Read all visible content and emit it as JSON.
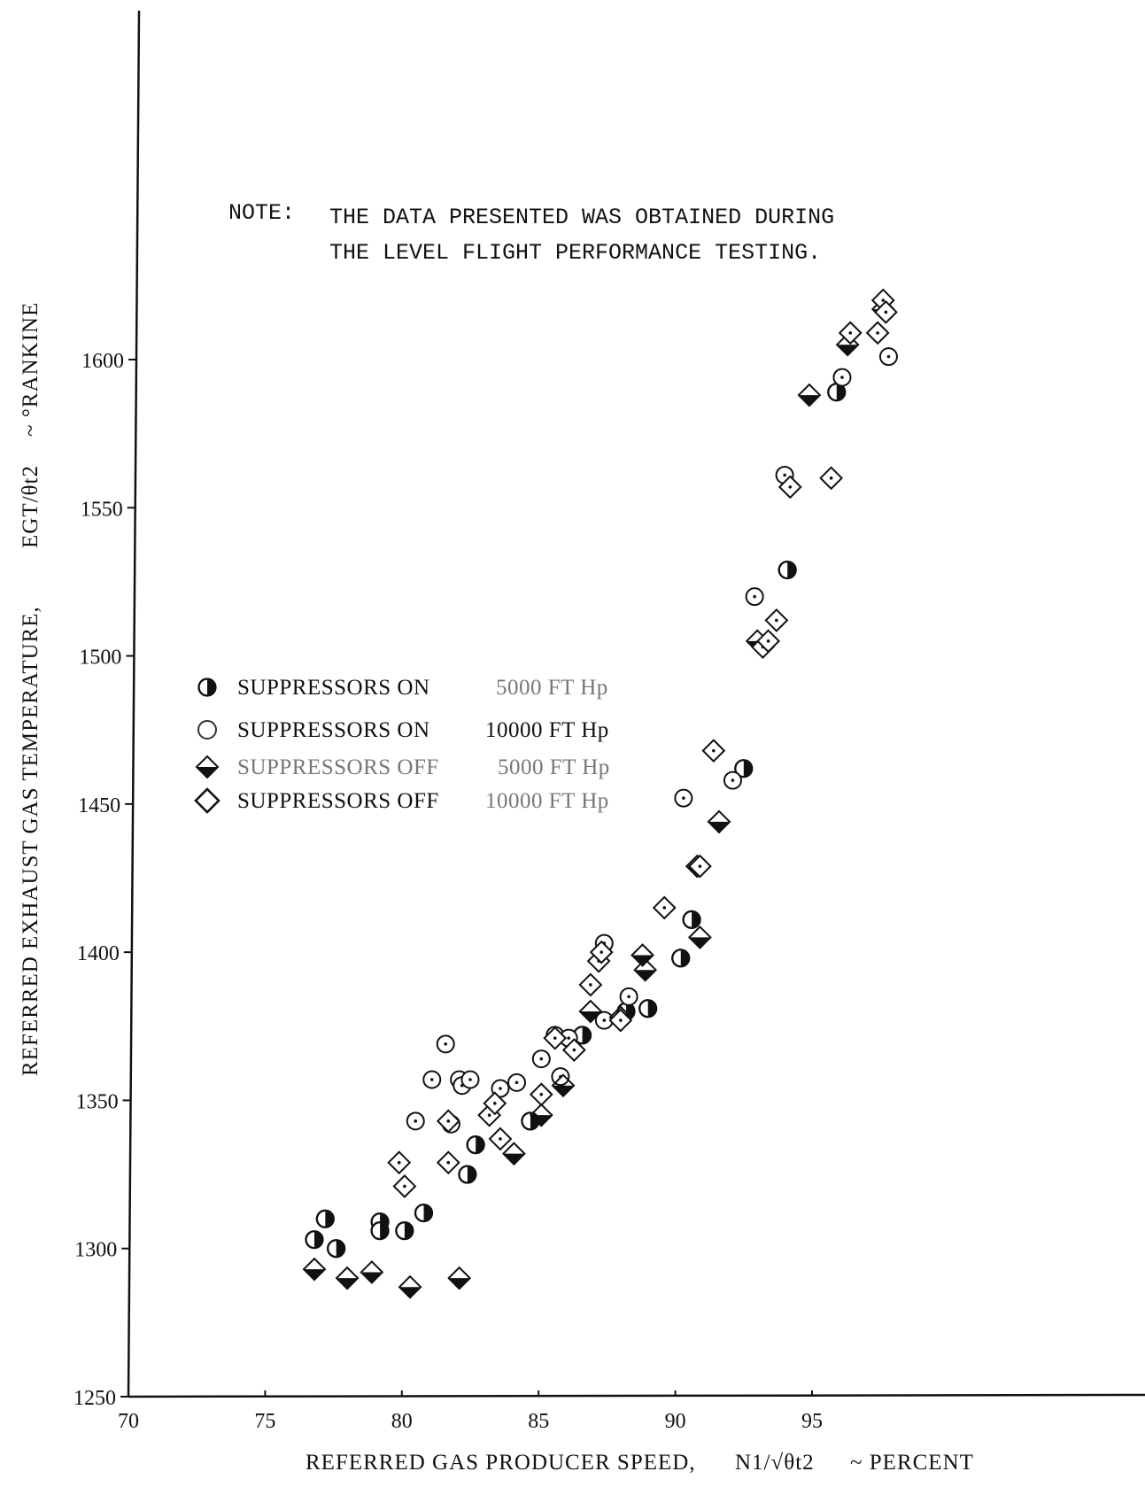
{
  "chart_data": {
    "type": "scatter",
    "note": {
      "label": "NOTE:",
      "lines": [
        "THE DATA PRESENTED WAS OBTAINED DURING",
        "THE LEVEL FLIGHT PERFORMANCE TESTING."
      ]
    },
    "xaxis": {
      "label_main": "REFERRED GAS PRODUCER SPEED,",
      "label_formula": "N1/√θt2",
      "label_unit": "~ PERCENT",
      "ticks": [
        70,
        75,
        80,
        85,
        90,
        95
      ],
      "range": [
        70,
        100
      ]
    },
    "yaxis": {
      "label_main": "REFERRED EXHAUST GAS TEMPERATURE,",
      "label_formula": "EGT/θt2",
      "label_unit": "~ °RANKINE",
      "ticks": [
        1250,
        1300,
        1350,
        1400,
        1450,
        1500,
        1550,
        1600
      ],
      "range": [
        1250,
        1640
      ]
    },
    "legend_placement": "center-left",
    "series": [
      {
        "name": "SUPPRESSORS ON",
        "altitude": "5000 FT Hp",
        "marker": "half-filled-circle",
        "points": [
          [
            76.8,
            1303
          ],
          [
            77.2,
            1310
          ],
          [
            77.6,
            1300
          ],
          [
            79.2,
            1309
          ],
          [
            79.2,
            1306
          ],
          [
            80.1,
            1306
          ],
          [
            80.8,
            1312
          ],
          [
            82.4,
            1325
          ],
          [
            82.7,
            1335
          ],
          [
            84.7,
            1343
          ],
          [
            86.6,
            1372
          ],
          [
            88.2,
            1380
          ],
          [
            89.0,
            1381
          ],
          [
            90.2,
            1398
          ],
          [
            90.6,
            1411
          ],
          [
            92.5,
            1462
          ],
          [
            94.1,
            1529
          ],
          [
            95.9,
            1589
          ]
        ]
      },
      {
        "name": "SUPPRESSORS ON",
        "altitude": "10000 FT Hp",
        "marker": "dotted-circle",
        "points": [
          [
            80.5,
            1343
          ],
          [
            81.1,
            1357
          ],
          [
            81.6,
            1369
          ],
          [
            81.8,
            1342
          ],
          [
            82.1,
            1357
          ],
          [
            82.2,
            1355
          ],
          [
            82.5,
            1357
          ],
          [
            83.6,
            1354
          ],
          [
            84.2,
            1356
          ],
          [
            85.1,
            1364
          ],
          [
            85.6,
            1372
          ],
          [
            85.8,
            1358
          ],
          [
            86.1,
            1371
          ],
          [
            87.4,
            1403
          ],
          [
            87.4,
            1377
          ],
          [
            88.3,
            1385
          ],
          [
            90.3,
            1452
          ],
          [
            92.1,
            1458
          ],
          [
            92.9,
            1520
          ],
          [
            94.0,
            1561
          ],
          [
            96.1,
            1594
          ],
          [
            97.8,
            1601
          ]
        ]
      },
      {
        "name": "SUPPRESSORS OFF",
        "altitude": "5000 FT Hp",
        "marker": "half-filled-diamond",
        "points": [
          [
            76.8,
            1293
          ],
          [
            78.0,
            1290
          ],
          [
            78.9,
            1292
          ],
          [
            80.3,
            1287
          ],
          [
            82.1,
            1290
          ],
          [
            84.1,
            1332
          ],
          [
            85.1,
            1345
          ],
          [
            85.9,
            1355
          ],
          [
            86.9,
            1380
          ],
          [
            88.0,
            1378
          ],
          [
            88.8,
            1399
          ],
          [
            88.9,
            1394
          ],
          [
            90.8,
            1429
          ],
          [
            90.9,
            1405
          ],
          [
            91.6,
            1444
          ],
          [
            93.0,
            1505
          ],
          [
            94.9,
            1588
          ],
          [
            96.3,
            1605
          ],
          [
            97.6,
            1617
          ]
        ]
      },
      {
        "name": "SUPPRESSORS OFF",
        "altitude": "10000 FT Hp",
        "marker": "dotted-diamond",
        "points": [
          [
            79.9,
            1329
          ],
          [
            80.1,
            1321
          ],
          [
            81.7,
            1343
          ],
          [
            81.7,
            1329
          ],
          [
            83.2,
            1345
          ],
          [
            83.4,
            1349
          ],
          [
            83.6,
            1337
          ],
          [
            85.1,
            1352
          ],
          [
            85.6,
            1371
          ],
          [
            86.3,
            1367
          ],
          [
            86.9,
            1389
          ],
          [
            87.2,
            1397
          ],
          [
            87.3,
            1400
          ],
          [
            88.0,
            1377
          ],
          [
            89.6,
            1415
          ],
          [
            90.9,
            1429
          ],
          [
            91.4,
            1468
          ],
          [
            93.2,
            1503
          ],
          [
            93.4,
            1505
          ],
          [
            93.7,
            1512
          ],
          [
            94.2,
            1557
          ],
          [
            95.7,
            1560
          ],
          [
            96.4,
            1609
          ],
          [
            97.4,
            1609
          ],
          [
            97.6,
            1620
          ],
          [
            97.7,
            1616
          ]
        ]
      }
    ]
  }
}
